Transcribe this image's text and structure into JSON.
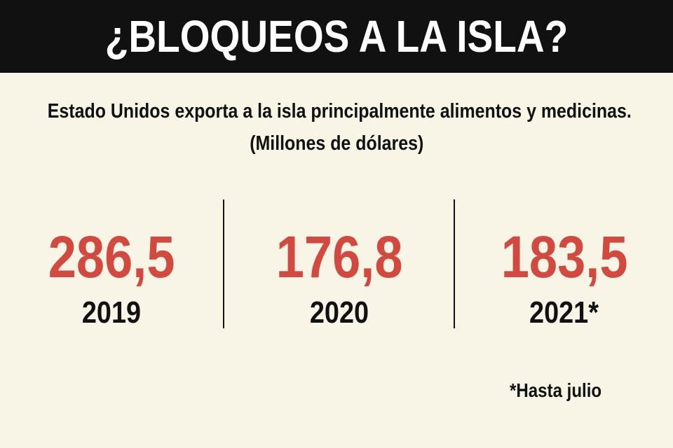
{
  "header": {
    "title": "¿BLOQUEOS A LA ISLA?"
  },
  "subtitle": {
    "line1": "Estado Unidos exporta a la isla principalmente alimentos y medicinas.",
    "line2": "(Millones de dólares)"
  },
  "stats": [
    {
      "value": "286,5",
      "year": "2019"
    },
    {
      "value": "176,8",
      "year": "2020"
    },
    {
      "value": "183,5",
      "year": "2021*"
    }
  ],
  "footnote": "*Hasta julio",
  "colors": {
    "background": "#f8f5e6",
    "header_bg": "#111111",
    "header_text": "#ffffff",
    "value_accent": "#d24a3f",
    "text": "#111111"
  }
}
